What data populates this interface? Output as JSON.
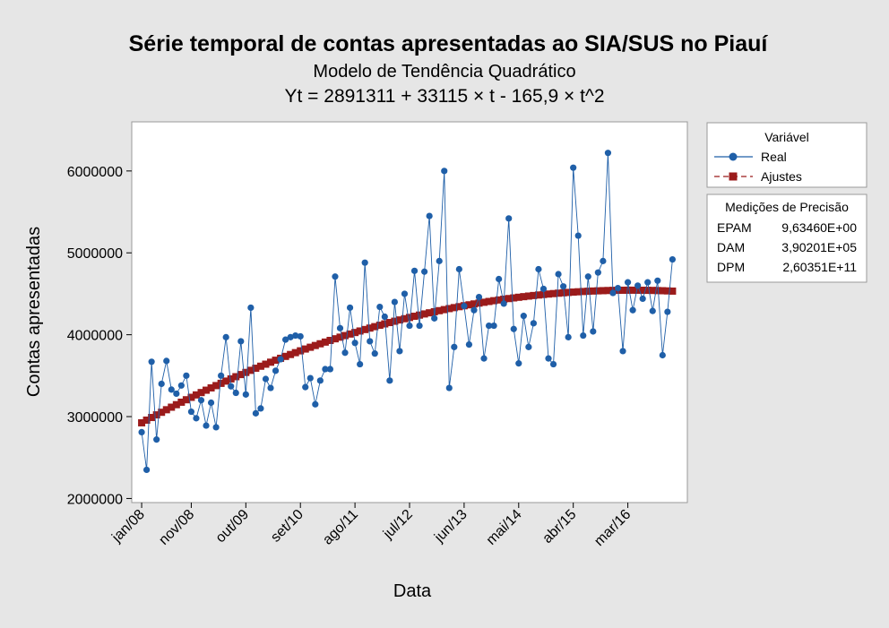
{
  "chart_data": {
    "type": "line",
    "title": "Série temporal de contas apresentadas ao SIA/SUS no Piauí",
    "subtitle": "Modelo de Tendência Quadrático",
    "equation": "Yt = 2891311 + 33115 × t - 165,9 × t^2",
    "xlabel": "Data",
    "ylabel": "Contas apresentadas",
    "ylim": [
      1950000,
      6600000
    ],
    "yticks": [
      2000000,
      3000000,
      4000000,
      5000000,
      6000000
    ],
    "ytick_labels": [
      "2000000",
      "3000000",
      "4000000",
      "5000000",
      "6000000"
    ],
    "xticks": [
      {
        "t": 1,
        "label": "jan/08"
      },
      {
        "t": 11,
        "label": "nov/08"
      },
      {
        "t": 22,
        "label": "out/09"
      },
      {
        "t": 33,
        "label": "set/10"
      },
      {
        "t": 44,
        "label": "ago/11"
      },
      {
        "t": 55,
        "label": "jul/12"
      },
      {
        "t": 66,
        "label": "jun/13"
      },
      {
        "t": 77,
        "label": "mai/14"
      },
      {
        "t": 88,
        "label": "abr/15"
      },
      {
        "t": 99,
        "label": "mar/16"
      }
    ],
    "x_range": [
      -1,
      111
    ],
    "legend_placement": "right",
    "legend_title": "Variável",
    "colors": {
      "real": "#1f5fa8",
      "fit": "#9b1b1b",
      "plot_bg": "#ffffff",
      "page_bg": "#e6e6e6"
    },
    "series": [
      {
        "name": "Real",
        "marker": "circle",
        "values": [
          2810000,
          2350000,
          3670000,
          2720000,
          3400000,
          3680000,
          3330000,
          3280000,
          3380000,
          3500000,
          3060000,
          2980000,
          3200000,
          2890000,
          3170000,
          2870000,
          3500000,
          3970000,
          3370000,
          3290000,
          3920000,
          3270000,
          4330000,
          3040000,
          3100000,
          3460000,
          3350000,
          3560000,
          3700000,
          3940000,
          3970000,
          3990000,
          3980000,
          3360000,
          3470000,
          3150000,
          3440000,
          3580000,
          3580000,
          4710000,
          4080000,
          3780000,
          4330000,
          3900000,
          3640000,
          4880000,
          3920000,
          3770000,
          4340000,
          4220000,
          3440000,
          4400000,
          3800000,
          4500000,
          4110000,
          4780000,
          4110000,
          4770000,
          5450000,
          4200000,
          4900000,
          6000000,
          3350000,
          3850000,
          4800000,
          4350000,
          3880000,
          4300000,
          4460000,
          3710000,
          4110000,
          4110000,
          4680000,
          4380000,
          5420000,
          4070000,
          3650000,
          4230000,
          3850000,
          4140000,
          4800000,
          4560000,
          3710000,
          3640000,
          4740000,
          4590000,
          3970000,
          6040000,
          5210000,
          3990000,
          4710000,
          4040000,
          4760000,
          4900000,
          6220000,
          4510000,
          4570000,
          3800000,
          4640000,
          4300000,
          4600000,
          4440000,
          4640000,
          4290000,
          4660000,
          3750000,
          4280000,
          4920000
        ]
      },
      {
        "name": "Ajustes",
        "marker": "square",
        "model": {
          "a": 2891311,
          "b": 33115,
          "c": -165.9,
          "n": 108
        }
      }
    ]
  },
  "accuracy": {
    "title": "Medições de Precisão",
    "rows": [
      {
        "label": "EPAM",
        "value": "9,63460E+00"
      },
      {
        "label": "DAM",
        "value": "3,90201E+05"
      },
      {
        "label": "DPM",
        "value": "2,60351E+11"
      }
    ]
  }
}
